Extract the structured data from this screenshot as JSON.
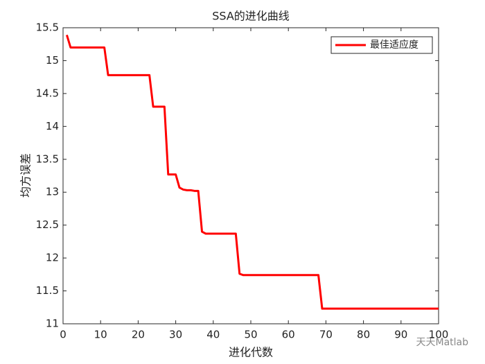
{
  "chart_data": {
    "type": "line",
    "title": "SSA的进化曲线",
    "x_label": "进化代数",
    "y_label": "均方误差",
    "x": [
      1,
      2,
      3,
      4,
      5,
      6,
      7,
      8,
      9,
      10,
      11,
      12,
      13,
      14,
      15,
      16,
      17,
      18,
      19,
      20,
      21,
      22,
      23,
      24,
      25,
      26,
      27,
      28,
      29,
      30,
      31,
      32,
      33,
      34,
      35,
      36,
      37,
      38,
      39,
      40,
      41,
      42,
      43,
      44,
      45,
      46,
      47,
      48,
      49,
      50,
      51,
      52,
      53,
      54,
      55,
      56,
      57,
      58,
      59,
      60,
      61,
      62,
      63,
      64,
      65,
      66,
      67,
      68,
      69,
      70,
      71,
      72,
      73,
      74,
      75,
      76,
      77,
      78,
      79,
      80,
      81,
      82,
      83,
      84,
      85,
      86,
      87,
      88,
      89,
      90,
      91,
      92,
      93,
      94,
      95,
      96,
      97,
      98,
      99,
      100
    ],
    "series": [
      {
        "name": "最佳适应度",
        "color": "#ff0000",
        "values": [
          15.39,
          15.2,
          15.2,
          15.2,
          15.2,
          15.2,
          15.2,
          15.2,
          15.2,
          15.2,
          15.2,
          14.78,
          14.78,
          14.78,
          14.78,
          14.78,
          14.78,
          14.78,
          14.78,
          14.78,
          14.78,
          14.78,
          14.78,
          14.3,
          14.3,
          14.3,
          14.3,
          13.27,
          13.27,
          13.27,
          13.07,
          13.04,
          13.03,
          13.03,
          13.02,
          13.02,
          12.4,
          12.37,
          12.37,
          12.37,
          12.37,
          12.37,
          12.37,
          12.37,
          12.37,
          12.37,
          11.76,
          11.74,
          11.74,
          11.74,
          11.74,
          11.74,
          11.74,
          11.74,
          11.74,
          11.74,
          11.74,
          11.74,
          11.74,
          11.74,
          11.74,
          11.74,
          11.74,
          11.74,
          11.74,
          11.74,
          11.74,
          11.74,
          11.23,
          11.23,
          11.23,
          11.23,
          11.23,
          11.23,
          11.23,
          11.23,
          11.23,
          11.23,
          11.23,
          11.23,
          11.23,
          11.23,
          11.23,
          11.23,
          11.23,
          11.23,
          11.23,
          11.23,
          11.23,
          11.23,
          11.23,
          11.23,
          11.23,
          11.23,
          11.23,
          11.23,
          11.23,
          11.23,
          11.23,
          11.23
        ]
      }
    ],
    "xlim": [
      0,
      100
    ],
    "xticks": [
      0,
      10,
      20,
      30,
      40,
      50,
      60,
      70,
      80,
      90,
      100
    ],
    "ylim": [
      11,
      15.5
    ],
    "yticks": [
      11,
      11.5,
      12,
      12.5,
      13,
      13.5,
      14,
      14.5,
      15,
      15.5
    ],
    "legend": "upper right",
    "grid": false,
    "annotation": "天天Matlab"
  }
}
